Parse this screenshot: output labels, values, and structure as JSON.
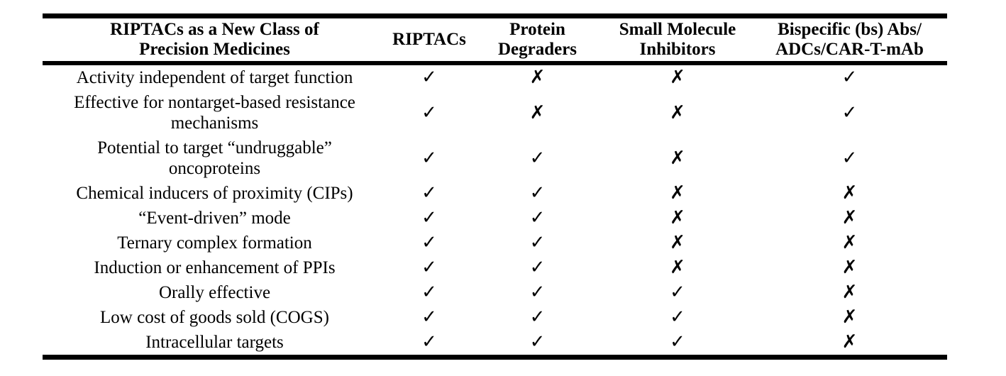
{
  "table": {
    "columns": [
      {
        "label": "RIPTACs as a New Class of\nPrecision Medicines"
      },
      {
        "label": "RIPTACs"
      },
      {
        "label": "Protein\nDegraders"
      },
      {
        "label": "Small Molecule\nInhibitors"
      },
      {
        "label": "Bispecific (bs) Abs/\nADCs/CAR-T-mAb"
      }
    ],
    "glyphs": {
      "check": "✓",
      "cross": "✗"
    },
    "rows": [
      {
        "feature": "Activity independent of target function",
        "marks": [
          "check",
          "cross",
          "cross",
          "check"
        ]
      },
      {
        "feature": "Effective for nontarget-based resistance\nmechanisms",
        "marks": [
          "check",
          "cross",
          "cross",
          "check"
        ]
      },
      {
        "feature": "Potential to target “undruggable”\noncoproteins",
        "marks": [
          "check",
          "check",
          "cross",
          "check"
        ]
      },
      {
        "feature": "Chemical inducers of proximity (CIPs)",
        "marks": [
          "check",
          "check",
          "cross",
          "cross"
        ]
      },
      {
        "feature": "“Event-driven” mode",
        "marks": [
          "check",
          "check",
          "cross",
          "cross"
        ]
      },
      {
        "feature": "Ternary complex formation",
        "marks": [
          "check",
          "check",
          "cross",
          "cross"
        ]
      },
      {
        "feature": "Induction or enhancement of PPIs",
        "marks": [
          "check",
          "check",
          "cross",
          "cross"
        ]
      },
      {
        "feature": "Orally effective",
        "marks": [
          "check",
          "check",
          "check",
          "cross"
        ]
      },
      {
        "feature": "Low cost of goods sold (COGS)",
        "marks": [
          "check",
          "check",
          "check",
          "cross"
        ]
      },
      {
        "feature": "Intracellular targets",
        "marks": [
          "check",
          "check",
          "check",
          "cross"
        ]
      }
    ]
  },
  "colors": {
    "text": "#000000",
    "background": "#ffffff",
    "rule": "#000000"
  }
}
